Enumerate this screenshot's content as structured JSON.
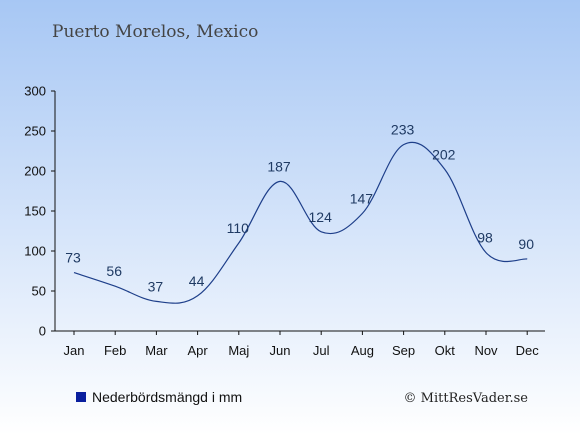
{
  "chart_data": {
    "type": "line",
    "title": "Puerto Morelos, Mexico",
    "categories": [
      "Jan",
      "Feb",
      "Mar",
      "Apr",
      "Maj",
      "Jun",
      "Jul",
      "Aug",
      "Sep",
      "Okt",
      "Nov",
      "Dec"
    ],
    "series": [
      {
        "name": "Nederbördsmängd i mm",
        "values": [
          73,
          56,
          37,
          44,
          110,
          187,
          124,
          147,
          233,
          202,
          98,
          90
        ]
      }
    ],
    "ylim": [
      0,
      300
    ],
    "yticks": [
      0,
      50,
      100,
      150,
      200,
      250,
      300
    ],
    "grid": false,
    "legend": "bottom-left"
  },
  "credit": "© MittResVader.se",
  "colors": {
    "background_top": "#a7c7f4",
    "background_bottom": "#ffffff",
    "line": "#1e3f8a",
    "legend_marker": "#0a1f9e"
  }
}
